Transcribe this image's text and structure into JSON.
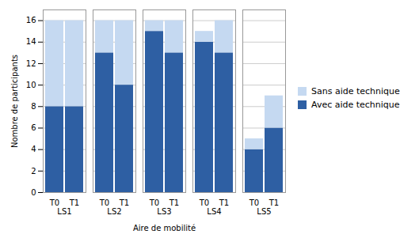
{
  "chart_data": {
    "type": "bar",
    "stacked": true,
    "xlabel": "Aire de mobilité",
    "ylabel": "Nombre de participants",
    "categories": [
      "LS1",
      "LS2",
      "LS3",
      "LS4",
      "LS5"
    ],
    "subcategories": [
      "T0",
      "T1"
    ],
    "series": [
      {
        "name": "Avec aide technique",
        "color": "#2E5FA3",
        "values": [
          [
            8,
            8
          ],
          [
            13,
            10
          ],
          [
            15,
            13
          ],
          [
            14,
            13
          ],
          [
            4,
            6
          ]
        ]
      },
      {
        "name": "Sans aide technique",
        "color": "#C5D9F1",
        "values": [
          [
            8,
            8
          ],
          [
            3,
            6
          ],
          [
            1,
            3
          ],
          [
            1,
            3
          ],
          [
            1,
            3
          ]
        ]
      }
    ],
    "ylim": [
      0,
      17
    ],
    "yticks": [
      0,
      2,
      4,
      6,
      8,
      10,
      12,
      14,
      16
    ],
    "grid": true,
    "legend": "right"
  }
}
